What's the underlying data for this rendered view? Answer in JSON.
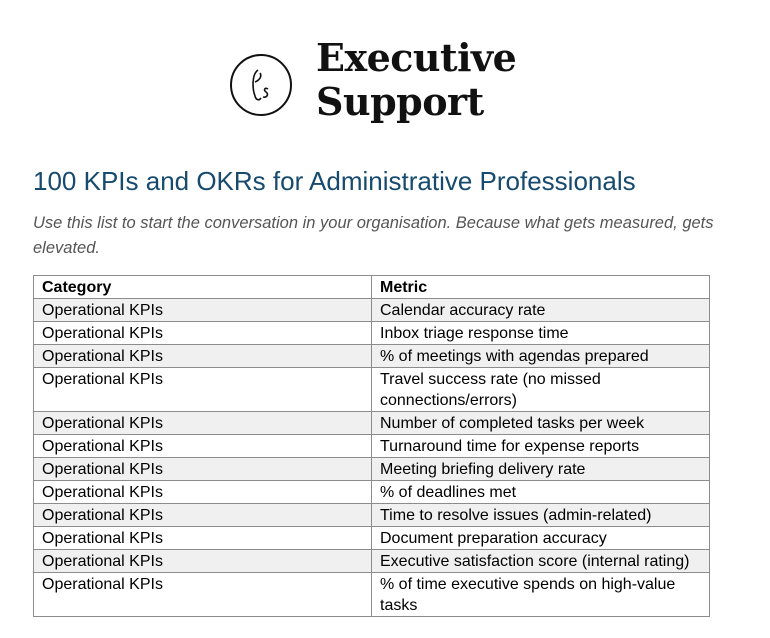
{
  "logo": {
    "line1": "Executive",
    "line2": "Support",
    "monogram": "es"
  },
  "title": "100 KPIs and OKRs for Administrative Professionals",
  "intro": "Use this list to start the conversation in your organisation. Because what gets measured, gets elevated.",
  "table": {
    "headers": [
      "Category",
      "Metric"
    ],
    "rows": [
      [
        "Operational KPIs",
        "Calendar accuracy rate"
      ],
      [
        "Operational KPIs",
        "Inbox triage response time"
      ],
      [
        "Operational KPIs",
        "% of meetings with agendas prepared"
      ],
      [
        "Operational KPIs",
        "Travel success rate (no missed connections/errors)"
      ],
      [
        "Operational KPIs",
        "Number of completed tasks per week"
      ],
      [
        "Operational KPIs",
        "Turnaround time for expense reports"
      ],
      [
        "Operational KPIs",
        "Meeting briefing delivery rate"
      ],
      [
        "Operational KPIs",
        "% of deadlines met"
      ],
      [
        "Operational KPIs",
        "Time to resolve issues (admin-related)"
      ],
      [
        "Operational KPIs",
        "Document preparation accuracy"
      ],
      [
        "Operational KPIs",
        "Executive satisfaction score (internal rating)"
      ],
      [
        "Operational KPIs",
        "% of time executive spends on high-value tasks"
      ]
    ]
  }
}
